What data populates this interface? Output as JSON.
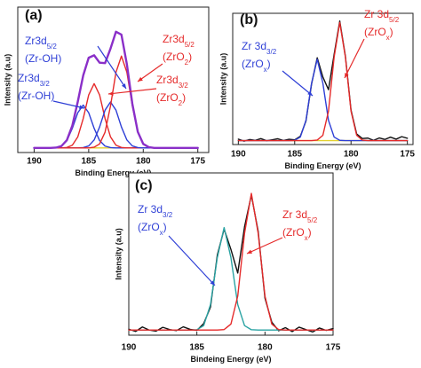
{
  "chart_data": [
    {
      "type": "line",
      "panel_label": "(a)",
      "xlabel": "Binding Energy (eV)",
      "ylabel": "Intensity (a.u)",
      "xlim": [
        191.5,
        174
      ],
      "ylim": [
        0,
        95
      ],
      "xticks": [
        190,
        185,
        180,
        175
      ],
      "x": [
        190,
        189.5,
        189,
        188.5,
        188,
        187.5,
        187,
        186.5,
        186,
        185.5,
        185,
        184.5,
        184,
        183.5,
        183,
        182.5,
        182,
        181.5,
        181,
        180.5,
        180,
        179.5,
        179,
        178.5,
        178,
        177.5,
        177,
        176.5,
        176,
        175.5,
        175
      ],
      "series": [
        {
          "color": "#e3d12e",
          "values": [
            3,
            3,
            3,
            3,
            3,
            3,
            3,
            3,
            3,
            3,
            3,
            3,
            3,
            3,
            3,
            3,
            3,
            3,
            3,
            3,
            3,
            3,
            3,
            3,
            3,
            3,
            3,
            3,
            3,
            3,
            3
          ]
        },
        {
          "color": "#2e3fd6",
          "values": [
            3,
            3,
            3,
            3,
            3.2,
            4.2,
            7.8,
            15.8,
            26,
            31,
            26,
            15.8,
            7.8,
            4.2,
            3.2,
            3,
            3,
            3,
            3,
            3,
            3,
            3,
            3,
            3,
            3,
            3,
            3,
            3,
            3,
            3,
            3
          ]
        },
        {
          "color": "#e52a2a",
          "values": [
            3,
            3,
            3,
            3,
            3,
            3,
            3.3,
            4.8,
            10.2,
            22.2,
            37.6,
            45,
            37.6,
            22.2,
            10.2,
            4.8,
            3.3,
            3,
            3,
            3,
            3,
            3,
            3,
            3,
            3,
            3,
            3,
            3,
            3,
            3,
            3
          ]
        },
        {
          "color": "#2e3fd6",
          "values": [
            3,
            3,
            3,
            3,
            3,
            3,
            3,
            3,
            3,
            3.2,
            4.3,
            8.2,
            16.7,
            27.7,
            33,
            27.7,
            16.7,
            8.2,
            4.3,
            3.2,
            3,
            3,
            3,
            3,
            3,
            3,
            3,
            3,
            3,
            3,
            3
          ]
        },
        {
          "color": "#e52a2a",
          "values": [
            3,
            3,
            3,
            3,
            3,
            3,
            3,
            3,
            3,
            3,
            3,
            3.5,
            5.6,
            13.3,
            30.5,
            52.4,
            63,
            52.4,
            30.5,
            13.3,
            5.6,
            3.5,
            3,
            3,
            3,
            3,
            3,
            3,
            3,
            3,
            3
          ]
        },
        {
          "color": "#8a2fc8",
          "values": [
            3,
            3,
            3,
            3,
            3.2,
            4.2,
            8.1,
            17.6,
            33.2,
            50.4,
            61.9,
            63.5,
            58.7,
            58.4,
            67.9,
            78.9,
            77,
            57.6,
            31.8,
            13.5,
            5.6,
            3.5,
            3,
            3,
            3,
            3,
            3,
            3,
            3,
            3,
            3
          ]
        }
      ],
      "annotations": [
        {
          "color": "#2e3fd6",
          "lines": [
            [
              {
                "text": "Zr3d"
              },
              {
                "text": "5/2",
                "sub": true
              }
            ],
            [
              {
                "text": "(Zr-OH)"
              }
            ]
          ]
        },
        {
          "color": "#2e3fd6",
          "lines": [
            [
              {
                "text": "Zr3d"
              },
              {
                "text": "3/2",
                "sub": true
              }
            ],
            [
              {
                "text": "(Zr-OH)"
              }
            ]
          ]
        },
        {
          "color": "#e52a2a",
          "lines": [
            [
              {
                "text": "Zr3d"
              },
              {
                "text": "5/2",
                "sub": true
              }
            ],
            [
              {
                "text": "(ZrO"
              },
              {
                "text": "2",
                "sub": true
              },
              {
                "text": ")"
              }
            ]
          ]
        },
        {
          "color": "#e52a2a",
          "lines": [
            [
              {
                "text": "Zr3d"
              },
              {
                "text": "3/2",
                "sub": true
              }
            ],
            [
              {
                "text": "(ZrO"
              },
              {
                "text": "2",
                "sub": true
              },
              {
                "text": ")"
              }
            ]
          ]
        }
      ]
    },
    {
      "type": "line",
      "panel_label": "(b)",
      "xlabel": "Binding Energy (eV)",
      "ylabel": "Intensity (a.u)",
      "xlim": [
        190.5,
        174.5
      ],
      "ylim": [
        0,
        100
      ],
      "xticks": [
        190,
        185,
        180,
        175
      ],
      "x": [
        190,
        189.5,
        189,
        188.5,
        188,
        187.5,
        187,
        186.5,
        186,
        185.5,
        185,
        184.5,
        184,
        183.5,
        183,
        182.5,
        182,
        181.5,
        181,
        180.5,
        180,
        179.5,
        179,
        178.5,
        178,
        177.5,
        177,
        176.5,
        176,
        175.5,
        175
      ],
      "series": [
        {
          "color": "#e3d12e",
          "values": [
            3,
            3,
            3,
            3,
            3,
            3,
            3,
            3,
            3,
            3,
            3,
            3,
            3,
            3,
            3,
            3,
            3,
            3,
            3,
            3,
            3,
            3,
            3,
            3,
            3,
            3,
            3,
            3,
            3,
            3,
            3
          ]
        },
        {
          "color": "#111111",
          "values": [
            4.1,
            2.6,
            3.8,
            3.2,
            4.5,
            2.9,
            3.6,
            4.4,
            3.1,
            4.0,
            3.6,
            6.3,
            17.9,
            46.2,
            66.1,
            51.5,
            41.8,
            68.7,
            94.1,
            67.3,
            26.2,
            8.1,
            4.6,
            4.9,
            3.2,
            5.0,
            3.9,
            5.6,
            4.1,
            6.0,
            4.8
          ]
        },
        {
          "color": "#2e3fd6",
          "values": [
            3,
            3,
            3,
            3,
            3,
            3,
            3,
            3,
            3,
            3,
            3.2,
            5.7,
            18.4,
            46.8,
            65,
            46.8,
            18.4,
            5.7,
            3.2,
            3,
            3,
            3,
            3,
            3,
            3,
            3,
            3,
            3,
            3,
            3,
            3
          ]
        },
        {
          "color": "#e52a2a",
          "values": [
            3,
            3,
            3,
            3,
            3,
            3,
            3,
            3,
            3,
            3,
            3,
            3,
            3,
            3,
            3.4,
            7,
            25.4,
            66.6,
            93,
            66.6,
            25.4,
            7,
            3.4,
            3,
            3,
            3,
            3,
            3,
            3,
            3,
            3
          ]
        }
      ],
      "annotations": [
        {
          "color": "#e52a2a",
          "lines": [
            [
              {
                "text": "Zr 3d"
              },
              {
                "text": "5/2",
                "sub": true
              }
            ],
            [
              {
                "text": "(ZrO"
              },
              {
                "text": "x",
                "sub": true
              },
              {
                "text": ")"
              }
            ]
          ]
        },
        {
          "color": "#2e3fd6",
          "lines": [
            [
              {
                "text": "Zr 3d"
              },
              {
                "text": "3/2",
                "sub": true
              }
            ],
            [
              {
                "text": "(ZrO"
              },
              {
                "text": "x",
                "sub": true
              },
              {
                "text": ")"
              }
            ]
          ]
        }
      ]
    },
    {
      "type": "line",
      "panel_label": "(c)",
      "xlabel": "Bindeing Energy (eV)",
      "ylabel": "Intensity (a.u)",
      "xlim": [
        190,
        175
      ],
      "ylim": [
        0,
        95
      ],
      "xticks": [
        190,
        185,
        180,
        175
      ],
      "x": [
        190,
        189.5,
        189,
        188.5,
        188,
        187.5,
        187,
        186.5,
        186,
        185.5,
        185,
        184.5,
        184,
        183.5,
        183,
        182.5,
        182,
        181.5,
        181,
        180.5,
        180,
        179.5,
        179,
        178.5,
        178,
        177.5,
        177,
        176.5,
        176,
        175.5,
        175
      ],
      "series": [
        {
          "color": "#111111",
          "values": [
            3.5,
            2.2,
            4.8,
            3.0,
            2.4,
            4.6,
            3.3,
            2.7,
            4.9,
            3.4,
            2.8,
            6.8,
            16.5,
            46.9,
            62.1,
            50.2,
            36.4,
            63.5,
            82.0,
            60.8,
            21.7,
            7.6,
            2.6,
            4.4,
            2.1,
            4.7,
            3.3,
            1.9,
            4.2,
            2.8,
            3.9
          ]
        },
        {
          "color": "#2aa3a3",
          "values": [
            3,
            3,
            3,
            3,
            3,
            3,
            3,
            3,
            3,
            3,
            3.2,
            5.6,
            17.9,
            45.4,
            63,
            45.4,
            17.9,
            5.6,
            3.2,
            3,
            3,
            3,
            3,
            3,
            3,
            3,
            3,
            3,
            3,
            3,
            3
          ]
        },
        {
          "color": "#e52a2a",
          "values": [
            3,
            3,
            3,
            3,
            3,
            3,
            3,
            3,
            3,
            3,
            3,
            3,
            3,
            3,
            3.3,
            6.5,
            22.9,
            59.6,
            83,
            59.6,
            22.9,
            6.5,
            3.3,
            3,
            3,
            3,
            3,
            3,
            3,
            3,
            3
          ]
        }
      ],
      "annotations": [
        {
          "color": "#2e3fd6",
          "lines": [
            [
              {
                "text": "Zr 3d"
              },
              {
                "text": "3/2",
                "sub": true
              }
            ],
            [
              {
                "text": "(ZrO"
              },
              {
                "text": "x",
                "sub": true
              },
              {
                "text": ")"
              }
            ]
          ]
        },
        {
          "color": "#e52a2a",
          "lines": [
            [
              {
                "text": "Zr 3d"
              },
              {
                "text": "5/2",
                "sub": true
              }
            ],
            [
              {
                "text": "(ZrO"
              },
              {
                "text": "x",
                "sub": true
              },
              {
                "text": ")"
              }
            ]
          ]
        }
      ]
    }
  ]
}
